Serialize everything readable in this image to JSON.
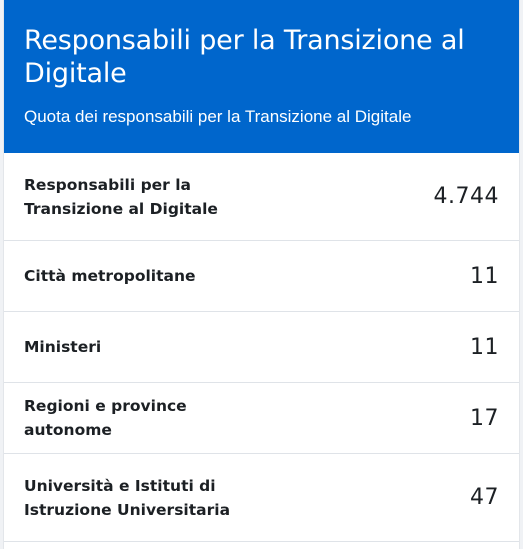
{
  "card": {
    "title": "Responsabili per la Transizione al Digitale",
    "subtitle": "Quota dei responsabili per la Transizione al Digitale",
    "header_color": "#0066cc"
  },
  "rows": [
    {
      "label": "Responsabili per la Transizione al Digitale",
      "value": "4.744"
    },
    {
      "label": "Città metropolitane",
      "value": "11"
    },
    {
      "label": "Ministeri",
      "value": "11"
    },
    {
      "label": "Regioni e province autonome",
      "value": "17"
    },
    {
      "label": "Università e Istituti di Istruzione Universitaria",
      "value": "47"
    }
  ]
}
